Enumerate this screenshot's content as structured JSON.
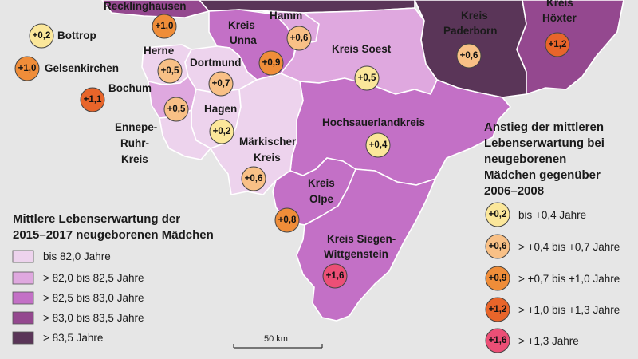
{
  "colors": {
    "background": "#e6e6e6",
    "lev1": "#edd3ed",
    "lev2": "#dfa8df",
    "lev3": "#c370c6",
    "lev4": "#94488f",
    "lev5": "#5a3558",
    "bubble_1": "#fbe79a",
    "bubble_2": "#f8c086",
    "bubble_3": "#ef8d39",
    "bubble_4": "#e8652a",
    "bubble_5": "#ec4f76"
  },
  "regions": {
    "recklinghausen": "Recklinghausen",
    "bottrop": "Bottrop",
    "gelsenkirchen": "Gelsenkirchen",
    "bochum": "Bochum",
    "herne": "Herne",
    "dortmund": "Dortmund",
    "hagen": "Hagen",
    "ennepe_1": "Ennepe-",
    "ennepe_2": "Ruhr-",
    "ennepe_3": "Kreis",
    "unna_1": "Kreis",
    "unna_2": "Unna",
    "hamm": "Hamm",
    "soest": "Kreis Soest",
    "paderborn_1": "Kreis",
    "paderborn_2": "Paderborn",
    "hoexter_1": "Kreis",
    "hoexter_2": "Höxter",
    "hochsauerland": "Hochsauerlandkreis",
    "maerkischer_1": "Märkischer",
    "maerkischer_2": "Kreis",
    "olpe_1": "Kreis",
    "olpe_2": "Olpe",
    "siegen_1": "Kreis Siegen-",
    "siegen_2": "Wittgenstein"
  },
  "values": {
    "recklinghausen": "+1,0",
    "bottrop": "+0,2",
    "gelsenkirchen": "+1,0",
    "bochum": "+1,1",
    "herne": "+0,5",
    "dortmund": "+0,7",
    "bochum_herne_south": "+0,5",
    "hagen": "+0,2",
    "unna": "+0,9",
    "hamm": "+0,6",
    "soest": "+0,5",
    "paderborn": "+0,6",
    "hoexter": "+1,2",
    "hochsauerland": "+0,4",
    "maerkischer": "+0,6",
    "olpe": "+0,8",
    "siegen": "+1,6"
  },
  "legend_left": {
    "title_1": "Mittlere Lebenserwartung der",
    "title_2": "2015–2017 neugeborenen Mädchen",
    "items": [
      "bis 82,0 Jahre",
      "> 82,0 bis 82,5 Jahre",
      "> 82,5 bis 83,0 Jahre",
      "> 83,0 bis 83,5 Jahre",
      "> 83,5 Jahre"
    ]
  },
  "legend_right": {
    "title_1": "Anstieg der mittleren",
    "title_2": "Lebenserwartung bei",
    "title_3": "neugeborenen",
    "title_4": "Mädchen gegenüber",
    "title_5": "2006–2008",
    "samples": [
      "+0,2",
      "+0,6",
      "+0,9",
      "+1,2",
      "+1,6"
    ],
    "items": [
      "bis +0,4 Jahre",
      "> +0,4 bis +0,7 Jahre",
      "> +0,7 bis +1,0 Jahre",
      "> +1,0 bis +1,3 Jahre",
      "> +1,3 Jahre"
    ]
  },
  "scale_bar": {
    "label": "50 km"
  }
}
